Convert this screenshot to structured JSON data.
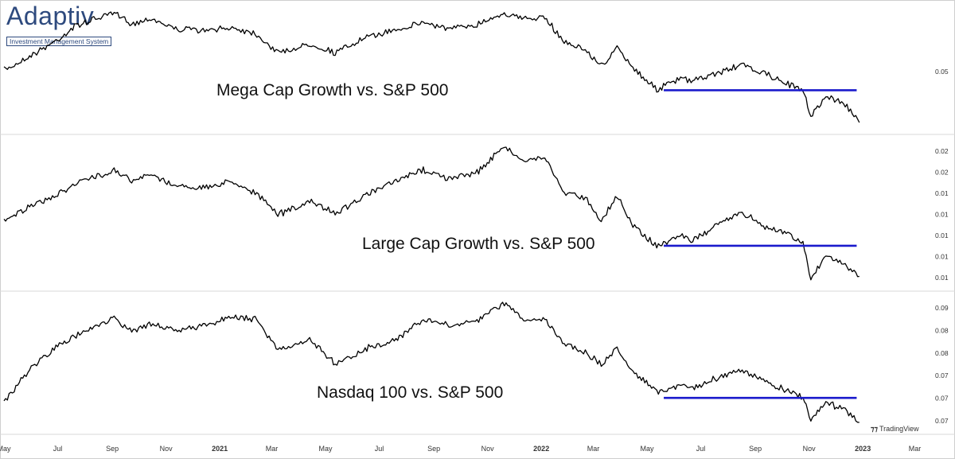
{
  "logo": {
    "name": "Adaptiv",
    "tagline": "Investment Management System"
  },
  "watermark": {
    "text": "TradingView",
    "icon": "tradingview-logo-icon"
  },
  "colors": {
    "line": "#000000",
    "support": "#1a1acc",
    "grid": "#e6e6e6",
    "axis_text": "#333333"
  },
  "chart_data": [
    {
      "type": "line",
      "title": "Mega Cap Growth vs. S&P 500",
      "y_ticks": [
        "0.05"
      ],
      "x_range": [
        "2020-05-01",
        "2023-03-15"
      ],
      "series": [
        {
          "values": [
            [
              "2020-05-01",
              0.0475
            ],
            [
              "2020-06-01",
              0.0492
            ],
            [
              "2020-07-01",
              0.051
            ],
            [
              "2020-07-20",
              0.0525
            ],
            [
              "2020-08-15",
              0.0535
            ],
            [
              "2020-09-03",
              0.054
            ],
            [
              "2020-09-25",
              0.0528
            ],
            [
              "2020-10-15",
              0.0535
            ],
            [
              "2020-11-10",
              0.0523
            ],
            [
              "2020-12-15",
              0.052
            ],
            [
              "2021-01-15",
              0.0524
            ],
            [
              "2021-02-10",
              0.0518
            ],
            [
              "2021-03-08",
              0.0495
            ],
            [
              "2021-04-15",
              0.0505
            ],
            [
              "2021-05-12",
              0.0495
            ],
            [
              "2021-06-15",
              0.0512
            ],
            [
              "2021-07-20",
              0.0522
            ],
            [
              "2021-08-20",
              0.053
            ],
            [
              "2021-09-20",
              0.0522
            ],
            [
              "2021-10-20",
              0.0528
            ],
            [
              "2021-11-20",
              0.0541
            ],
            [
              "2021-12-10",
              0.0534
            ],
            [
              "2022-01-05",
              0.0535
            ],
            [
              "2022-01-27",
              0.0508
            ],
            [
              "2022-02-20",
              0.0498
            ],
            [
              "2022-03-10",
              0.048
            ],
            [
              "2022-03-28",
              0.05
            ],
            [
              "2022-04-15",
              0.0478
            ],
            [
              "2022-05-12",
              0.0453
            ],
            [
              "2022-06-10",
              0.0466
            ],
            [
              "2022-06-20",
              0.0462
            ],
            [
              "2022-07-15",
              0.047
            ],
            [
              "2022-08-15",
              0.0481
            ],
            [
              "2022-09-10",
              0.0472
            ],
            [
              "2022-10-10",
              0.0458
            ],
            [
              "2022-10-25",
              0.0452
            ],
            [
              "2022-11-03",
              0.0423
            ],
            [
              "2022-11-20",
              0.0445
            ],
            [
              "2022-12-10",
              0.0438
            ],
            [
              "2022-12-28",
              0.0415
            ]
          ]
        }
      ],
      "support_line": {
        "from": "2022-05-20",
        "to": "2022-12-25",
        "value": 0.0452
      }
    },
    {
      "type": "line",
      "title": "Large Cap Growth vs. S&P 500",
      "y_ticks": [
        "0.02",
        "0.02",
        "0.01",
        "0.01",
        "0.01",
        "0.01",
        "0.01"
      ],
      "x_range": [
        "2020-05-01",
        "2023-03-15"
      ],
      "series": [
        {
          "values": [
            [
              "2020-05-01",
              0.0122
            ],
            [
              "2020-06-01",
              0.0135
            ],
            [
              "2020-07-01",
              0.0148
            ],
            [
              "2020-07-20",
              0.016
            ],
            [
              "2020-08-15",
              0.0168
            ],
            [
              "2020-09-03",
              0.0175
            ],
            [
              "2020-09-25",
              0.0162
            ],
            [
              "2020-10-15",
              0.017
            ],
            [
              "2020-11-10",
              0.0158
            ],
            [
              "2020-12-15",
              0.0155
            ],
            [
              "2021-01-15",
              0.0163
            ],
            [
              "2021-02-10",
              0.015
            ],
            [
              "2021-03-08",
              0.0127
            ],
            [
              "2021-04-15",
              0.014
            ],
            [
              "2021-05-12",
              0.0128
            ],
            [
              "2021-06-15",
              0.0147
            ],
            [
              "2021-07-20",
              0.0162
            ],
            [
              "2021-08-20",
              0.0175
            ],
            [
              "2021-09-20",
              0.0165
            ],
            [
              "2021-10-20",
              0.0172
            ],
            [
              "2021-11-20",
              0.02
            ],
            [
              "2021-12-10",
              0.0185
            ],
            [
              "2022-01-05",
              0.0188
            ],
            [
              "2022-01-27",
              0.015
            ],
            [
              "2022-02-20",
              0.0145
            ],
            [
              "2022-03-10",
              0.012
            ],
            [
              "2022-03-28",
              0.0147
            ],
            [
              "2022-04-15",
              0.0115
            ],
            [
              "2022-05-12",
              0.0092
            ],
            [
              "2022-06-10",
              0.0105
            ],
            [
              "2022-06-20",
              0.0098
            ],
            [
              "2022-07-15",
              0.0112
            ],
            [
              "2022-08-15",
              0.013
            ],
            [
              "2022-09-10",
              0.0115
            ],
            [
              "2022-10-10",
              0.0105
            ],
            [
              "2022-10-25",
              0.0095
            ],
            [
              "2022-11-03",
              0.0057
            ],
            [
              "2022-11-20",
              0.0082
            ],
            [
              "2022-12-10",
              0.0075
            ],
            [
              "2022-12-28",
              0.006
            ]
          ]
        }
      ],
      "support_line": {
        "from": "2022-05-20",
        "to": "2022-12-25",
        "value": 0.0093
      }
    },
    {
      "type": "line",
      "title": "Nasdaq 100 vs. S&P 500",
      "y_ticks": [
        "0.09",
        "0.08",
        "0.08",
        "0.07",
        "0.07",
        "0.07"
      ],
      "x_range": [
        "2020-05-01",
        "2023-03-15"
      ],
      "series": [
        {
          "values": [
            [
              "2020-05-01",
              0.0722
            ],
            [
              "2020-06-01",
              0.078
            ],
            [
              "2020-07-01",
              0.0815
            ],
            [
              "2020-07-20",
              0.083
            ],
            [
              "2020-08-15",
              0.085
            ],
            [
              "2020-09-03",
              0.086
            ],
            [
              "2020-09-25",
              0.0838
            ],
            [
              "2020-10-15",
              0.0852
            ],
            [
              "2020-11-10",
              0.084
            ],
            [
              "2020-12-15",
              0.0848
            ],
            [
              "2021-01-15",
              0.0862
            ],
            [
              "2021-02-10",
              0.0858
            ],
            [
              "2021-03-08",
              0.081
            ],
            [
              "2021-04-15",
              0.0825
            ],
            [
              "2021-05-12",
              0.0785
            ],
            [
              "2021-06-15",
              0.081
            ],
            [
              "2021-07-20",
              0.0825
            ],
            [
              "2021-08-20",
              0.0858
            ],
            [
              "2021-09-20",
              0.0848
            ],
            [
              "2021-10-20",
              0.0855
            ],
            [
              "2021-11-20",
              0.0885
            ],
            [
              "2021-12-10",
              0.086
            ],
            [
              "2022-01-05",
              0.0858
            ],
            [
              "2022-01-27",
              0.082
            ],
            [
              "2022-02-20",
              0.0805
            ],
            [
              "2022-03-10",
              0.0785
            ],
            [
              "2022-03-28",
              0.081
            ],
            [
              "2022-04-15",
              0.0775
            ],
            [
              "2022-05-12",
              0.074
            ],
            [
              "2022-06-10",
              0.0752
            ],
            [
              "2022-06-20",
              0.0745
            ],
            [
              "2022-07-15",
              0.076
            ],
            [
              "2022-08-15",
              0.0775
            ],
            [
              "2022-09-10",
              0.0758
            ],
            [
              "2022-10-10",
              0.074
            ],
            [
              "2022-10-25",
              0.073
            ],
            [
              "2022-11-03",
              0.0695
            ],
            [
              "2022-11-20",
              0.0722
            ],
            [
              "2022-12-10",
              0.0712
            ],
            [
              "2022-12-28",
              0.069
            ]
          ]
        }
      ],
      "support_line": {
        "from": "2022-05-20",
        "to": "2022-12-25",
        "value": 0.073
      }
    }
  ],
  "x_axis": {
    "ticks": [
      {
        "label": "May",
        "date": "2020-05-01"
      },
      {
        "label": "Jul",
        "date": "2020-07-01"
      },
      {
        "label": "Sep",
        "date": "2020-09-01"
      },
      {
        "label": "Nov",
        "date": "2020-11-01"
      },
      {
        "label": "2021",
        "date": "2021-01-01",
        "bold": true
      },
      {
        "label": "Mar",
        "date": "2021-03-01"
      },
      {
        "label": "May",
        "date": "2021-05-01"
      },
      {
        "label": "Jul",
        "date": "2021-07-01"
      },
      {
        "label": "Sep",
        "date": "2021-09-01"
      },
      {
        "label": "Nov",
        "date": "2021-11-01"
      },
      {
        "label": "2022",
        "date": "2022-01-01",
        "bold": true
      },
      {
        "label": "Mar",
        "date": "2022-03-01"
      },
      {
        "label": "May",
        "date": "2022-05-01"
      },
      {
        "label": "Jul",
        "date": "2022-07-01"
      },
      {
        "label": "Sep",
        "date": "2022-09-01"
      },
      {
        "label": "Nov",
        "date": "2022-11-01"
      },
      {
        "label": "2023",
        "date": "2023-01-01",
        "bold": true
      },
      {
        "label": "Mar",
        "date": "2023-03-01"
      }
    ]
  }
}
